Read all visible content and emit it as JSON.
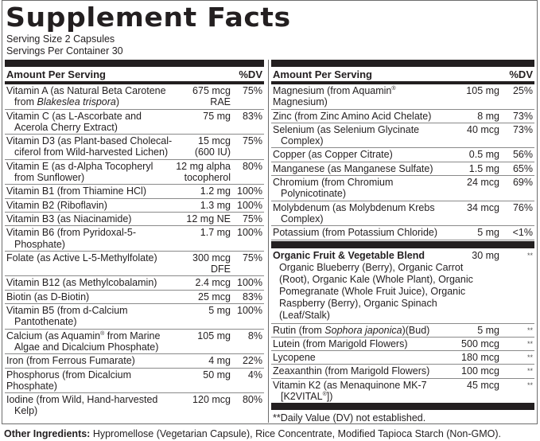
{
  "title": "Supplement Facts",
  "serving_size": "Serving Size 2 Capsules",
  "servings_per_container": "Servings Per Container 30",
  "header": {
    "amount": "Amount Per Serving",
    "dv": "%DV"
  },
  "left_rows": [
    {
      "name": "Vitamin A (as Natural Beta Carotene",
      "name2": "from ",
      "italic": "Blakeslea trispora",
      "after": ")",
      "amount": "675 mcg",
      "amount2": "RAE",
      "dv": "75%"
    },
    {
      "name": "Vitamin C (as L-Ascorbate and",
      "name2": "Acerola Cherry Extract)",
      "amount": "75 mg",
      "dv": "83%"
    },
    {
      "name": "Vitamin D3 (as Plant-based Cholecal-",
      "name2": "ciferol from Wild-harvested Lichen)",
      "amount": "15 mcg",
      "amount2": "(600 IU)",
      "dv": "75%"
    },
    {
      "name": "Vitamin E (as d-Alpha Tocopheryl",
      "name2": "from Sunflower)",
      "amount": "12 mg alpha",
      "amount2": "tocopherol",
      "dv": "80%"
    },
    {
      "name": "Vitamin B1 (from Thiamine HCl)",
      "amount": "1.2 mg",
      "dv": "100%"
    },
    {
      "name": "Vitamin B2 (Riboflavin)",
      "amount": "1.3 mg",
      "dv": "100%"
    },
    {
      "name": "Vitamin B3 (as Niacinamide)",
      "amount": "12 mg NE",
      "dv": "75%"
    },
    {
      "name": "Vitamin B6 (from Pyridoxal-5-",
      "name2": "Phosphate)",
      "amount": "1.7 mg",
      "dv": "100%"
    },
    {
      "name": "Folate (as Active L-5-Methylfolate)",
      "amount": "300 mcg",
      "amount2": "DFE",
      "dv": "75%"
    },
    {
      "name": "Vitamin B12 (as Methylcobalamin)",
      "amount": "2.4 mcg",
      "dv": "100%"
    },
    {
      "name": "Biotin (as D-Biotin)",
      "amount": "25 mcg",
      "dv": "83%"
    },
    {
      "name": "Vitamin B5 (from d-Calcium",
      "name2": "Pantothenate)",
      "amount": "5 mg",
      "dv": "100%"
    },
    {
      "name": "Calcium (as Aquamin® from Marine",
      "name2": "Algae and Dicalcium Phosphate)",
      "amount": "105 mg",
      "dv": "8%"
    },
    {
      "name": "Iron (from Ferrous Fumarate)",
      "amount": "4 mg",
      "dv": "22%"
    },
    {
      "name": "Phosphorus (from Dicalcium Phosphate)",
      "amount": "50 mg",
      "dv": "4%"
    },
    {
      "name": "Iodine (from Wild, Hand-harvested",
      "name2": "Kelp)",
      "amount": "120 mcg",
      "dv": "80%"
    }
  ],
  "right_rows": [
    {
      "name": "Magnesium (from Aquamin® Magnesium)",
      "amount": "105 mg",
      "dv": "25%"
    },
    {
      "name": "Zinc (from Zinc Amino Acid Chelate)",
      "amount": "8 mg",
      "dv": "73%"
    },
    {
      "name": "Selenium (as Selenium Glycinate",
      "name2": "Complex)",
      "amount": "40 mcg",
      "dv": "73%"
    },
    {
      "name": "Copper (as Copper Citrate)",
      "amount": "0.5 mg",
      "dv": "56%"
    },
    {
      "name": "Manganese (as Manganese Sulfate)",
      "amount": "1.5 mg",
      "dv": "65%"
    },
    {
      "name": "Chromium (from Chromium",
      "name2": "Polynicotinate)",
      "amount": "24 mcg",
      "dv": "69%"
    },
    {
      "name": "Molybdenum (as Molybdenum Krebs",
      "name2": "Complex)",
      "amount": "34 mcg",
      "dv": "76%"
    },
    {
      "name": "Potassium (from Potassium Chloride)",
      "amount": "5 mg",
      "dv": "<1%"
    }
  ],
  "blend": {
    "name": "Organic Fruit & Vegetable Blend",
    "amount": "30 mg",
    "dv": "**",
    "ingredients": "Organic Blueberry (Berry), Organic Carrot (Root), Organic Kale (Whole Plant), Organic Pomegranate (Whole Fruit Juice), Organic Raspberry (Berry), Organic Spinach (Leaf/Stalk)"
  },
  "right_rows2": [
    {
      "name": "Rutin (from ",
      "italic": "Sophora japonica",
      "after": ")(Bud)",
      "amount": "5 mg",
      "dv": "**"
    },
    {
      "name": "Lutein (from Marigold Flowers)",
      "amount": "500 mcg",
      "dv": "**"
    },
    {
      "name": "Lycopene",
      "amount": "180 mcg",
      "dv": "**"
    },
    {
      "name": "Zeaxanthin (from Marigold Flowers)",
      "amount": "100 mcg",
      "dv": "**"
    },
    {
      "name": "Vitamin K2 (as Menaquinone MK-7",
      "name2": "[K2VITAL®])",
      "amount": "45 mcg",
      "dv": "**"
    }
  ],
  "footnote": "**Daily Value (DV) not established.",
  "other_ingredients": {
    "label": "Other Ingredients:",
    "text": " Hypromellose (Vegetarian Capsule), Rice Concentrate, Modified Tapioca Starch (Non-GMO)."
  }
}
